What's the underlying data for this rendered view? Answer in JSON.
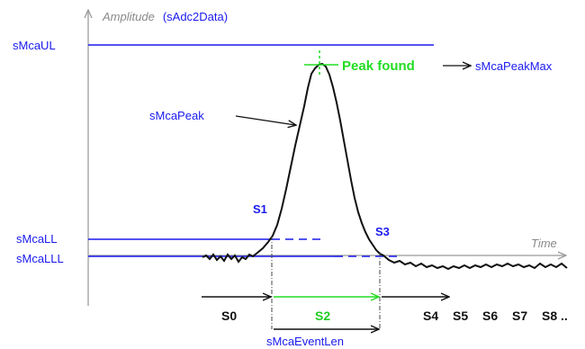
{
  "axis": {
    "y_prefix": "Amplitude",
    "y_suffix": "(sAdc2Data)",
    "x_label": "Time"
  },
  "levels": {
    "ul": "sMcaUL",
    "ll": "sMcaLL",
    "lll": "sMcaLLL"
  },
  "signal": {
    "peak_label": "sMcaPeak",
    "peak_found": "Peak found",
    "peak_max": "sMcaPeakMax"
  },
  "points": {
    "s1": "S1",
    "s3": "S3"
  },
  "states": {
    "s0": "S0",
    "s2": "S2",
    "s4": "S4",
    "s5": "S5",
    "s6": "S6",
    "s7": "S7",
    "s8": "S8 .."
  },
  "event_len": "sMcaEventLen",
  "colors": {
    "level_lines": "#1a1aee",
    "axis": "#aaaaaa",
    "signal": "#111111",
    "peak_marker": "#22dd22"
  }
}
